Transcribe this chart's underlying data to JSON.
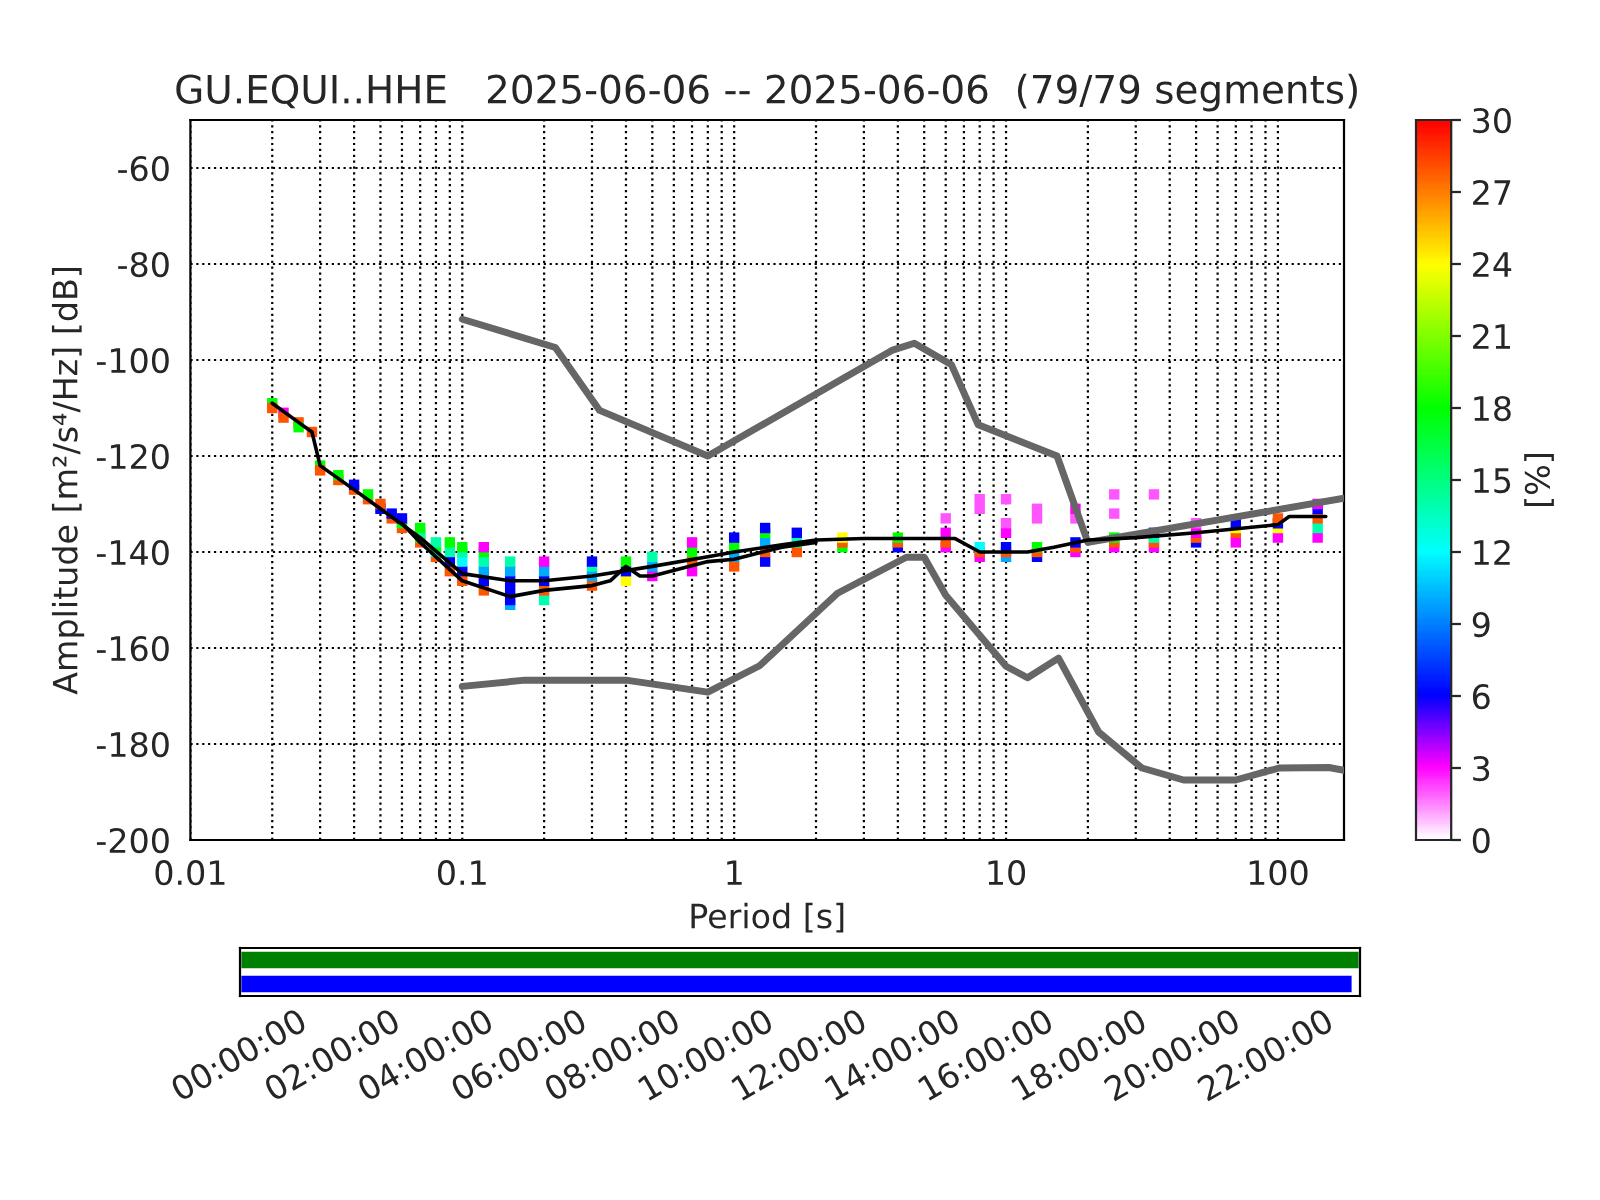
{
  "chart_data": [
    {
      "type": "line",
      "title": "GU.EQUI..HHE   2025-06-06 -- 2025-06-06  (79/79 segments)",
      "xlabel": "Period [s]",
      "ylabel": "Amplitude [m²/s⁴/Hz] [dB]",
      "clabel": "[%]",
      "log": "x",
      "grid": true,
      "marker": "none",
      "line_style": "solid",
      "xlim": [
        0.01,
        175
      ],
      "xticks": [
        0.01,
        0.1,
        1,
        10,
        100
      ],
      "ylim": [
        -200,
        -50
      ],
      "yticks": [
        -200,
        -180,
        -160,
        -140,
        -120,
        -100,
        -80,
        -60
      ],
      "clim": [
        0,
        30
      ],
      "cticks": [
        0,
        3,
        6,
        9,
        12,
        15,
        18,
        21,
        24,
        27,
        30
      ],
      "series": [
        {
          "type": "scatter",
          "marker": "square",
          "x": [
            0.02,
            0.02,
            0.022,
            0.022,
            0.025,
            0.025,
            0.028,
            0.03,
            0.03,
            0.035,
            0.035,
            0.04,
            0.04,
            0.045,
            0.045,
            0.05,
            0.05,
            0.055,
            0.055,
            0.06,
            0.06,
            0.06,
            0.07,
            0.07,
            0.07,
            0.07,
            0.08,
            0.08,
            0.08,
            0.08,
            0.09,
            0.09,
            0.09,
            0.09,
            0.1,
            0.1,
            0.1,
            0.1,
            0.1,
            0.12,
            0.12,
            0.12,
            0.12,
            0.12,
            0.12,
            0.15,
            0.15,
            0.15,
            0.15,
            0.15,
            0.15,
            0.2,
            0.2,
            0.2,
            0.2,
            0.2,
            0.3,
            0.3,
            0.3,
            0.3,
            0.4,
            0.4,
            0.4,
            0.5,
            0.5,
            0.5,
            0.7,
            0.7,
            0.7,
            0.7,
            1,
            1,
            1,
            1,
            1.3,
            1.3,
            1.3,
            1.3,
            1.3,
            1.7,
            1.7,
            1.7,
            2.5,
            2.5,
            2.5,
            4,
            4,
            4,
            6,
            6,
            6,
            6,
            8,
            8,
            8,
            8,
            8,
            10,
            10,
            10,
            10,
            10,
            10,
            13,
            13,
            13,
            13,
            13,
            18,
            18,
            18,
            18,
            18,
            25,
            25,
            25,
            25,
            25,
            35,
            35,
            35,
            35,
            35,
            50,
            50,
            50,
            50,
            70,
            70,
            70,
            70,
            100,
            100,
            100,
            100,
            140,
            140,
            140,
            140,
            140
          ],
          "values": [
            -109,
            -110,
            -111,
            -112,
            -113,
            -114,
            -115,
            -122,
            -123,
            -125,
            -124,
            -127,
            -126,
            -129,
            -128,
            -131,
            -130,
            -133,
            -132,
            -135,
            -134,
            -133,
            -138,
            -137,
            -136,
            -135,
            -141,
            -140,
            -139,
            -138,
            -144,
            -142,
            -140,
            -138,
            -146,
            -144,
            -142,
            -140,
            -139,
            -148,
            -146,
            -144,
            -142,
            -140,
            -139,
            -151,
            -150,
            -148,
            -146,
            -144,
            -142,
            -150,
            -148,
            -146,
            -144,
            -142,
            -147,
            -145,
            -143,
            -142,
            -146,
            -144,
            -142,
            -145,
            -143,
            -141,
            -144,
            -142,
            -140,
            -138,
            -143,
            -141,
            -139,
            -137,
            -142,
            -140,
            -138,
            -136,
            -135,
            -140,
            -138,
            -136,
            -139,
            -138,
            -137,
            -139,
            -138,
            -137,
            -139,
            -138,
            -136,
            -133,
            -141,
            -140,
            -139,
            -131,
            -129,
            -141,
            -140,
            -139,
            -136,
            -134,
            -129,
            -141,
            -140,
            -139,
            -133,
            -131,
            -140,
            -139,
            -138,
            -133,
            -131,
            -139,
            -138,
            -137,
            -128,
            -132,
            -139,
            -138,
            -137,
            -136,
            -128,
            -138,
            -137,
            -136,
            -134,
            -138,
            -136,
            -135,
            -134,
            -137,
            -135,
            -134,
            -133,
            -137,
            -135,
            -133,
            -131,
            -130
          ],
          "colors": [
            "#00ff00",
            "#ff5500",
            "#ff00ff",
            "#ff5500",
            "#ff5500",
            "#00ff00",
            "#ff5500",
            "#00ff00",
            "#ff5500",
            "#ff5500",
            "#00ff00",
            "#ff5500",
            "#0000ff",
            "#ff5500",
            "#00ff00",
            "#0000ff",
            "#ff5500",
            "#ff5500",
            "#0000ff",
            "#ff5500",
            "#00ff00",
            "#0000ff",
            "#ff5500",
            "#00ff00",
            "#00ffaa",
            "#00ff00",
            "#ff5500",
            "#00ffff",
            "#00ff00",
            "#00ffaa",
            "#ff5500",
            "#0000ff",
            "#00ffaa",
            "#00ff00",
            "#ff5500",
            "#0000ff",
            "#00ffff",
            "#00ffaa",
            "#00ff00",
            "#ff5500",
            "#0000ff",
            "#00aaff",
            "#00ffaa",
            "#00ff00",
            "#ff00ff",
            "#00aaff",
            "#0000ff",
            "#0000ff",
            "#0000ff",
            "#00aaff",
            "#00ffaa",
            "#00ffaa",
            "#ff5500",
            "#0000ff",
            "#00aaff",
            "#ff00ff",
            "#ff5500",
            "#00aaff",
            "#00ffaa",
            "#0000ff",
            "#ffff00",
            "#0000ff",
            "#00ff00",
            "#ff00ff",
            "#00aaff",
            "#00ffaa",
            "#ff00ff",
            "#ff5500",
            "#00ff00",
            "#ff00ff",
            "#ff5500",
            "#00aaff",
            "#00ff00",
            "#0000ff",
            "#0000ff",
            "#ff5500",
            "#00aaff",
            "#00ff00",
            "#0000ff",
            "#ff5500",
            "#00ffaa",
            "#0000ff",
            "#00ff00",
            "#ff5500",
            "#ffff00",
            "#0000ff",
            "#ff5500",
            "#00ff00",
            "#ff00ff",
            "#ff5500",
            "#ff00ff",
            "#ff55ff",
            "#ff00ff",
            "#ff5500",
            "#00ffff",
            "#ff55ff",
            "#ff55ff",
            "#00aaff",
            "#ff5500",
            "#0000ff",
            "#ff00ff",
            "#ff55ff",
            "#ff55ff",
            "#0000ff",
            "#ff5500",
            "#00ff00",
            "#ff55ff",
            "#ff55ff",
            "#ff00ff",
            "#ff5500",
            "#0000ff",
            "#ff55ff",
            "#ff00ff",
            "#ff00ff",
            "#ff5500",
            "#00ff00",
            "#ff55ff",
            "#ff55ff",
            "#ff00ff",
            "#ff5500",
            "#00ffaa",
            "#0000ff",
            "#ff55ff",
            "#0000ff",
            "#ff5500",
            "#ff00ff",
            "#ff55ff",
            "#ff00ff",
            "#ff5500",
            "#ffff00",
            "#0000ff",
            "#ff00ff",
            "#ffff00",
            "#0000ff",
            "#ff5500",
            "#ff00ff",
            "#00ffaa",
            "#ff5500",
            "#0000ff",
            "#ff00ff"
          ]
        },
        {
          "type": "line",
          "color": "#666666",
          "x": [
            0.1,
            0.22,
            0.32,
            0.8,
            3.8,
            4.6,
            6.3,
            7.9,
            15.4,
            20,
            175
          ],
          "values": [
            -91.5,
            -97.4,
            -110.5,
            -120,
            -98,
            -96.5,
            -101,
            -113.5,
            -120,
            -138,
            -128.8
          ]
        },
        {
          "type": "line",
          "color": "#666666",
          "x": [
            0.1,
            0.17,
            0.4,
            0.8,
            1.24,
            2.4,
            4.3,
            5,
            6,
            10,
            12,
            15.6,
            21.9,
            31.6,
            45,
            70,
            101,
            154,
            175
          ],
          "values": [
            -168,
            -166.7,
            -166.7,
            -169.2,
            -163.7,
            -148.6,
            -141.1,
            -141.1,
            -149,
            -163.8,
            -166.2,
            -162.1,
            -177.5,
            -185,
            -187.5,
            -187.5,
            -185,
            -184.9,
            -185.5
          ]
        },
        {
          "type": "line",
          "color": "#000000",
          "x": [
            0.02,
            0.025,
            0.028,
            0.03,
            0.04,
            0.05,
            0.07,
            0.1,
            0.15,
            0.2,
            0.3,
            0.5,
            0.8,
            1,
            1.5,
            2,
            3,
            5,
            6.5,
            8,
            12,
            15,
            20,
            30,
            50,
            100,
            110,
            150
          ],
          "values": [
            -109,
            -113,
            -115,
            -122,
            -127,
            -131,
            -137,
            -144.5,
            -146,
            -146,
            -145,
            -143,
            -141,
            -140,
            -138.5,
            -137.5,
            -137.2,
            -137.2,
            -137.2,
            -140,
            -140,
            -139,
            -137.5,
            -137,
            -136,
            -134.3,
            -132.6,
            -132.6
          ]
        },
        {
          "type": "line",
          "color": "#000000",
          "x": [
            0.06,
            0.07,
            0.1,
            0.15,
            0.2,
            0.3,
            0.35,
            0.4,
            0.45,
            0.5,
            0.8,
            1,
            1.5,
            2
          ],
          "values": [
            -134,
            -138,
            -146,
            -149.3,
            -148,
            -147,
            -146,
            -143,
            -145,
            -145,
            -142,
            -141.5,
            -139,
            -138
          ]
        }
      ]
    },
    {
      "type": "bar",
      "orientation": "horizontal",
      "categories": [
        null,
        null
      ],
      "values": [
        24,
        23.85
      ],
      "colors": [
        "#008000",
        "#0000ff"
      ],
      "xlim": [
        0,
        24
      ],
      "tick_labels": "x",
      "xticks": [
        {
          "value": 0,
          "label": "00:00:00"
        },
        {
          "value": 2,
          "label": "02:00:00"
        },
        {
          "value": 4,
          "label": "04:00:00"
        },
        {
          "value": 6,
          "label": "06:00:00"
        },
        {
          "value": 8,
          "label": "08:00:00"
        },
        {
          "value": 10,
          "label": "10:00:00"
        },
        {
          "value": 12,
          "label": "12:00:00"
        },
        {
          "value": 14,
          "label": "14:00:00"
        },
        {
          "value": 16,
          "label": "16:00:00"
        },
        {
          "value": 18,
          "label": "18:00:00"
        },
        {
          "value": 20,
          "label": "20:00:00"
        },
        {
          "value": 22,
          "label": "22:00:00"
        }
      ]
    }
  ]
}
